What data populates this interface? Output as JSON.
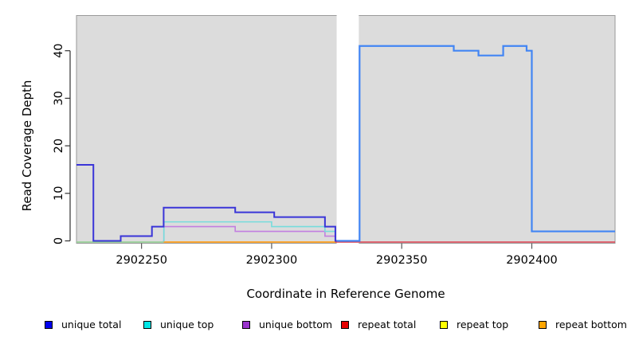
{
  "chart_data": {
    "type": "line",
    "subtype": "step-coverage",
    "title": "",
    "xlabel": "Coordinate in Reference Genome",
    "ylabel": "Read Coverage Depth",
    "xlim": [
      2902225,
      2902432
    ],
    "ylim": [
      0,
      46
    ],
    "x_ticks": [
      2902250,
      2902300,
      2902350,
      2902400
    ],
    "y_ticks": [
      0,
      10,
      20,
      30,
      40
    ],
    "grid": "off",
    "panel_background": "#dcdcdc",
    "panel_border_color": "#999999",
    "gap_region": {
      "x_start": 2902325,
      "x_end": 2902333.5,
      "color": "#ffffff"
    },
    "series": [
      {
        "name": "repeat top (baseline, renders pale green)",
        "color": "#8fd08f",
        "width": 1.6,
        "steps": [
          [
            2902225,
            0
          ],
          [
            2902258.5,
            0
          ]
        ]
      },
      {
        "name": "repeat bottom (baseline)",
        "color": "#ff9f1a",
        "width": 1.8,
        "steps": [
          [
            2902258.5,
            0
          ],
          [
            2902325,
            0
          ]
        ]
      },
      {
        "name": "repeat total (baseline)",
        "color": "#e0404f",
        "width": 1.5,
        "steps": [
          [
            2902324.5,
            0
          ],
          [
            2902432,
            0
          ]
        ]
      },
      {
        "name": "unique bottom",
        "color": "#c27fe0",
        "width": 1.6,
        "steps": [
          [
            2902258.3,
            0
          ],
          [
            2902258.6,
            3
          ],
          [
            2902286,
            2
          ],
          [
            2902320.5,
            1
          ],
          [
            2902324.5,
            0
          ]
        ]
      },
      {
        "name": "unique top",
        "color": "#76dcdc",
        "width": 1.6,
        "steps": [
          [
            2902258.3,
            0
          ],
          [
            2902258.6,
            4
          ],
          [
            2902300,
            3
          ],
          [
            2902320.5,
            2
          ],
          [
            2902324.5,
            0
          ]
        ]
      },
      {
        "name": "unique total (left of gap)",
        "color": "#3a35d8",
        "width": 2,
        "steps": [
          [
            2902225,
            16
          ],
          [
            2902231.5,
            0
          ],
          [
            2902242,
            1
          ],
          [
            2902254,
            3
          ],
          [
            2902258.5,
            7
          ],
          [
            2902286,
            6
          ],
          [
            2902301,
            5
          ],
          [
            2902320.5,
            3
          ],
          [
            2902324.5,
            0
          ],
          [
            2902325,
            0
          ]
        ]
      },
      {
        "name": "unique total (right of gap)",
        "color": "#4285f4",
        "width": 2.2,
        "steps": [
          [
            2902325,
            0
          ],
          [
            2902333.8,
            41
          ],
          [
            2902370,
            40
          ],
          [
            2902379.5,
            39
          ],
          [
            2902389,
            41
          ],
          [
            2902398,
            40
          ],
          [
            2902400,
            2
          ],
          [
            2902432,
            2
          ]
        ]
      }
    ],
    "legend": [
      {
        "label": "unique total",
        "color": "#0000ee"
      },
      {
        "label": "unique top",
        "color": "#00e6e6"
      },
      {
        "label": "unique bottom",
        "color": "#9932cc"
      },
      {
        "label": "repeat total",
        "color": "#e60000"
      },
      {
        "label": "repeat top",
        "color": "#ffff00"
      },
      {
        "label": "repeat bottom",
        "color": "#ffa500"
      }
    ],
    "legend_position": "bottom"
  }
}
